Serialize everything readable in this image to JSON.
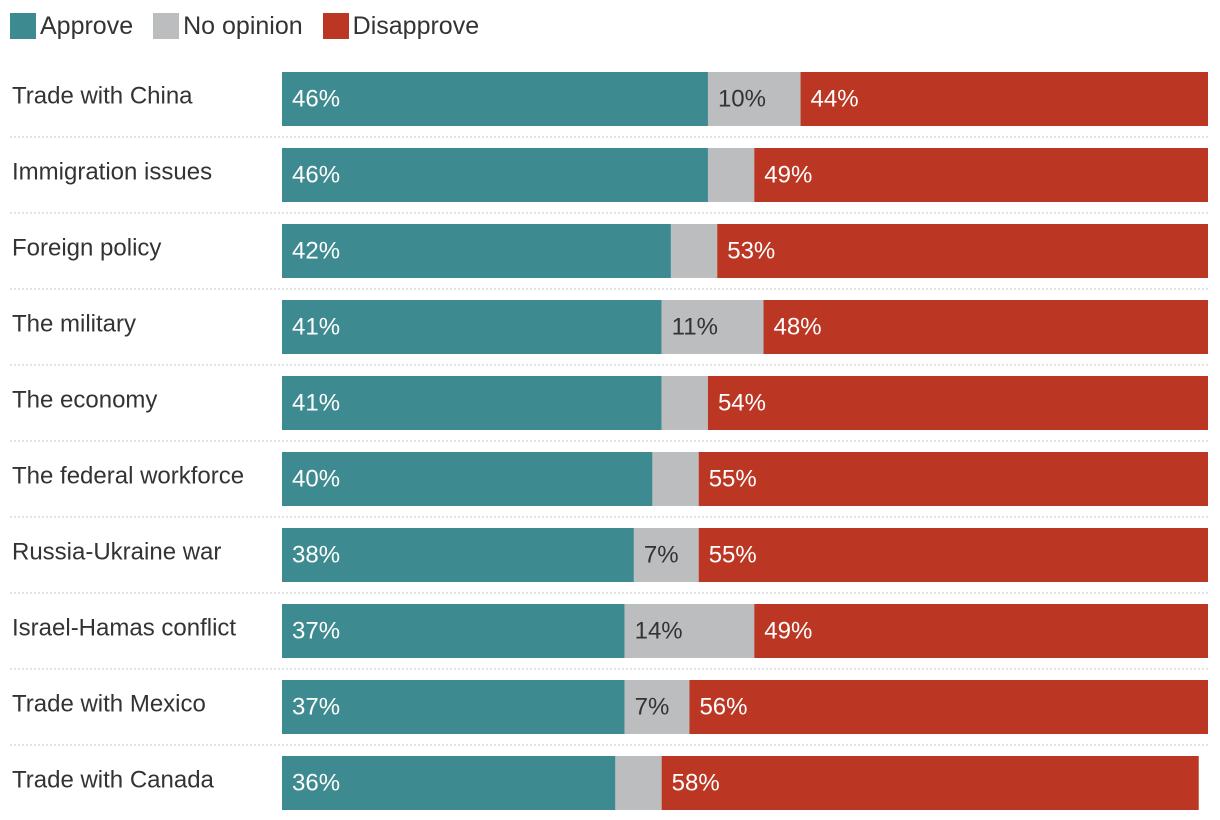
{
  "chart_data": {
    "type": "bar",
    "orientation": "horizontal",
    "stacked": true,
    "title": "",
    "xlabel": "",
    "ylabel": "",
    "xlim": [
      0,
      100
    ],
    "legend_position": "top-left",
    "categories": [
      "Trade with China",
      "Immigration issues",
      "Foreign policy",
      "The military",
      "The economy",
      "The federal workforce",
      "Russia-Ukraine war",
      "Israel-Hamas conflict",
      "Trade with Mexico",
      "Trade with Canada"
    ],
    "series": [
      {
        "name": "Approve",
        "color": "#3d8b90",
        "label_color": "#ffffff",
        "values": [
          46,
          46,
          42,
          41,
          41,
          40,
          38,
          37,
          37,
          36
        ],
        "labels": [
          "46%",
          "46%",
          "42%",
          "41%",
          "41%",
          "40%",
          "38%",
          "37%",
          "37%",
          "36%"
        ]
      },
      {
        "name": "No opinion",
        "color": "#bbbdbe",
        "label_color": "#333333",
        "values": [
          10,
          5,
          5,
          11,
          5,
          5,
          7,
          14,
          7,
          5
        ],
        "labels": [
          "10%",
          "",
          "",
          "11%",
          "",
          "",
          "7%",
          "14%",
          "7%",
          ""
        ]
      },
      {
        "name": "Disapprove",
        "color": "#bb3724",
        "label_color": "#ffffff",
        "values": [
          44,
          49,
          53,
          48,
          54,
          55,
          55,
          49,
          56,
          58
        ],
        "labels": [
          "44%",
          "49%",
          "53%",
          "48%",
          "54%",
          "55%",
          "55%",
          "49%",
          "56%",
          "58%"
        ]
      }
    ]
  }
}
